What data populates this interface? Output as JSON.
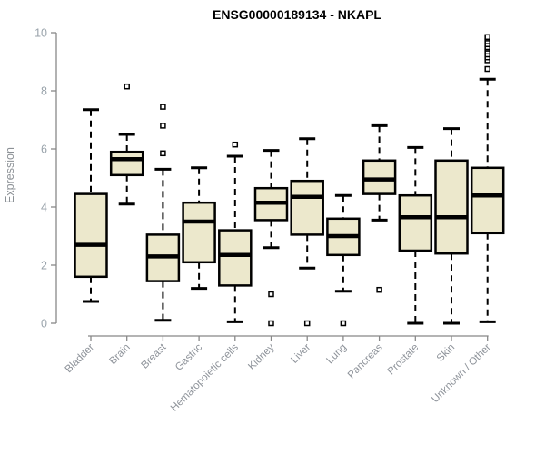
{
  "title": "ENSG00000189134 - NKAPL",
  "colors": {
    "background": "#ffffff",
    "box_fill": "#ece8cc",
    "box_border": "#000000",
    "median": "#000000",
    "whisker": "#000000",
    "outlier_fill": "#ffffff",
    "axis_line": "#888888",
    "y_tick_label": "#98a2aa",
    "x_tick_label": "#8e939a",
    "axis_title": "#8c9196",
    "title_color": "#000000"
  },
  "chart_data": {
    "type": "boxplot",
    "title": "ENSG00000189134 - NKAPL",
    "xlabel": "",
    "ylabel": "Expression",
    "ylim": [
      0,
      10
    ],
    "yticks": [
      0,
      2,
      4,
      6,
      8,
      10
    ],
    "grid": false,
    "legend": false,
    "categories": [
      "Bladder",
      "Brain",
      "Breast",
      "Gastric",
      "Hematopoietic cells",
      "Kidney",
      "Liver",
      "Lung",
      "Pancreas",
      "Prostate",
      "Skin",
      "Unknown / Other"
    ],
    "series": [
      {
        "category": "Bladder",
        "whisker_low": 0.75,
        "q1": 1.6,
        "median": 2.7,
        "q3": 4.45,
        "whisker_high": 7.35,
        "outliers": []
      },
      {
        "category": "Brain",
        "whisker_low": 4.1,
        "q1": 5.1,
        "median": 5.65,
        "q3": 5.9,
        "whisker_high": 6.5,
        "outliers": [
          8.15
        ]
      },
      {
        "category": "Breast",
        "whisker_low": 0.1,
        "q1": 1.45,
        "median": 2.3,
        "q3": 3.05,
        "whisker_high": 5.3,
        "outliers": [
          5.85,
          6.8,
          7.45
        ]
      },
      {
        "category": "Gastric",
        "whisker_low": 1.2,
        "q1": 2.1,
        "median": 3.5,
        "q3": 4.15,
        "whisker_high": 5.35,
        "outliers": []
      },
      {
        "category": "Hematopoietic cells",
        "whisker_low": 0.05,
        "q1": 1.3,
        "median": 2.35,
        "q3": 3.2,
        "whisker_high": 5.75,
        "outliers": [
          6.15
        ]
      },
      {
        "category": "Kidney",
        "whisker_low": 2.6,
        "q1": 3.55,
        "median": 4.15,
        "q3": 4.65,
        "whisker_high": 5.95,
        "outliers": [
          1.0,
          0.0
        ]
      },
      {
        "category": "Liver",
        "whisker_low": 1.9,
        "q1": 3.05,
        "median": 4.35,
        "q3": 4.9,
        "whisker_high": 6.35,
        "outliers": [
          0.0
        ]
      },
      {
        "category": "Lung",
        "whisker_low": 1.1,
        "q1": 2.35,
        "median": 3.0,
        "q3": 3.6,
        "whisker_high": 4.4,
        "outliers": [
          0.0
        ]
      },
      {
        "category": "Pancreas",
        "whisker_low": 3.55,
        "q1": 4.45,
        "median": 4.95,
        "q3": 5.6,
        "whisker_high": 6.8,
        "outliers": [
          1.15
        ]
      },
      {
        "category": "Prostate",
        "whisker_low": 0.0,
        "q1": 2.5,
        "median": 3.65,
        "q3": 4.4,
        "whisker_high": 6.05,
        "outliers": []
      },
      {
        "category": "Skin",
        "whisker_low": 0.0,
        "q1": 2.4,
        "median": 3.65,
        "q3": 5.6,
        "whisker_high": 6.7,
        "outliers": []
      },
      {
        "category": "Unknown / Other",
        "whisker_low": 0.05,
        "q1": 3.1,
        "median": 4.4,
        "q3": 5.35,
        "whisker_high": 8.4,
        "outliers": [
          8.75,
          9.05,
          9.15,
          9.25,
          9.35,
          9.45,
          9.5,
          9.6,
          9.7,
          9.8,
          9.85
        ]
      }
    ]
  }
}
